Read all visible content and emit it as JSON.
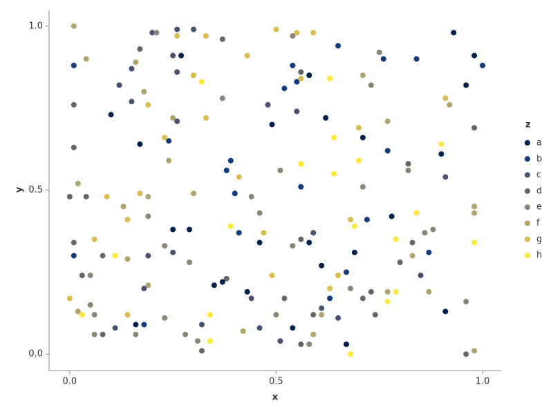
{
  "chart_data": {
    "type": "scatter",
    "x_label": "x",
    "y_label": "y",
    "legend_title": "z",
    "xlim": [
      -0.05,
      1.045
    ],
    "ylim": [
      -0.05,
      1.048
    ],
    "xticks": [
      {
        "value": 0,
        "label": "0.0"
      },
      {
        "value": 0.5,
        "label": "0.5"
      },
      {
        "value": 1,
        "label": "1.0"
      }
    ],
    "yticks": [
      {
        "value": 0,
        "label": "0.0"
      },
      {
        "value": 0.5,
        "label": "0.5"
      },
      {
        "value": 1,
        "label": "1.0"
      }
    ],
    "legend": "right",
    "series": [
      {
        "name": "a",
        "color": "#00204c",
        "x": [
          0.93,
          0.27,
          0.98,
          0.58,
          0.1,
          0.17,
          0.49,
          0.62,
          0.71,
          0.9,
          0.25,
          0.29,
          0.46,
          0.58,
          0.69,
          0.61,
          0.35,
          0.43,
          0.54,
          0.16,
          0.67,
          0.91,
          0.96,
          0.78,
          0.37
        ],
        "y": [
          0.98,
          0.91,
          0.91,
          0.85,
          0.73,
          0.64,
          0.7,
          0.72,
          0.66,
          0.61,
          0.38,
          0.38,
          0.34,
          0.34,
          0.31,
          0.27,
          0.21,
          0.19,
          0.08,
          0.09,
          0.03,
          0.13,
          0.82,
          0.42,
          0.22
        ]
      },
      {
        "name": "b",
        "color": "#133a7a",
        "x": [
          0.01,
          0.65,
          0.76,
          0.84,
          1.0,
          0.52,
          0.55,
          0.54,
          0.24,
          0.39,
          0.38,
          0.4,
          0.56,
          0.77,
          0.41,
          0.72,
          0.87,
          0.01,
          0.18,
          0.63,
          0.67
        ],
        "y": [
          0.88,
          0.94,
          0.9,
          0.9,
          0.88,
          0.81,
          0.83,
          0.88,
          0.65,
          0.59,
          0.56,
          0.49,
          0.51,
          0.62,
          0.37,
          0.41,
          0.31,
          0.3,
          0.09,
          0.17,
          0.25
        ]
      },
      {
        "name": "c",
        "color": "#495170",
        "x": [
          0.2,
          0.26,
          0.3,
          0.25,
          0.26,
          0.15,
          0.12,
          0.15,
          0.26,
          0.48,
          0.55,
          0.91,
          0.59,
          0.19,
          0.25,
          0.18,
          0.11,
          0.32,
          0.46,
          0.44,
          0.85,
          0.65,
          0.61,
          0.51
        ],
        "y": [
          0.98,
          0.99,
          0.99,
          0.91,
          0.86,
          0.87,
          0.82,
          0.77,
          0.71,
          0.76,
          0.74,
          0.54,
          0.37,
          0.3,
          0.31,
          0.2,
          0.08,
          0.09,
          0.08,
          0.17,
          0.24,
          0.11,
          0.14,
          0.04
        ]
      },
      {
        "name": "d",
        "color": "#666668",
        "x": [
          0.01,
          0.01,
          0.0,
          0.04,
          0.01,
          0.37,
          0.17,
          0.56,
          0.82,
          0.98,
          0.83,
          0.8,
          0.73,
          0.71,
          0.74,
          0.52,
          0.38,
          0.08,
          0.32,
          0.96,
          0.56,
          0.03,
          0.08,
          0.59,
          0.56
        ],
        "y": [
          0.76,
          0.63,
          0.48,
          0.48,
          0.34,
          0.96,
          0.93,
          0.86,
          0.58,
          0.69,
          0.34,
          0.28,
          0.19,
          0.17,
          0.12,
          0.17,
          0.23,
          0.06,
          0.01,
          0.0,
          0.03,
          0.24,
          0.3,
          0.12,
          0.35
        ]
      },
      {
        "name": "e",
        "color": "#8a8575",
        "x": [
          0.21,
          0.54,
          0.75,
          0.73,
          0.37,
          0.51,
          0.71,
          0.82,
          0.44,
          0.46,
          0.19,
          0.86,
          0.88,
          0.54,
          0.23,
          0.29,
          0.05,
          0.05,
          0.06,
          0.06,
          0.16,
          0.23,
          0.5,
          0.58,
          0.31,
          0.28,
          0.68,
          0.96
        ],
        "y": [
          0.98,
          0.97,
          0.92,
          0.82,
          0.78,
          0.56,
          0.51,
          0.56,
          0.48,
          0.43,
          0.42,
          0.37,
          0.38,
          0.33,
          0.33,
          0.28,
          0.24,
          0.15,
          0.12,
          0.06,
          0.06,
          0.11,
          0.12,
          0.03,
          0.04,
          0.06,
          0.2,
          0.16
        ]
      },
      {
        "name": "f",
        "color": "#b0a36e",
        "x": [
          0.01,
          0.04,
          0.16,
          0.3,
          0.18,
          0.25,
          0.24,
          0.02,
          0.13,
          0.19,
          0.3,
          0.71,
          0.77,
          0.92,
          0.98,
          0.98,
          0.14,
          0.19,
          0.02,
          0.77,
          0.83,
          0.87,
          0.61,
          0.59,
          0.42,
          0.98
        ],
        "y": [
          1.0,
          0.9,
          0.89,
          0.85,
          0.8,
          0.72,
          0.59,
          0.52,
          0.45,
          0.48,
          0.49,
          0.85,
          0.71,
          0.76,
          0.45,
          0.43,
          0.29,
          0.21,
          0.13,
          0.19,
          0.3,
          0.19,
          0.12,
          0.06,
          0.07,
          0.01
        ]
      },
      {
        "name": "g",
        "color": "#d9bd50",
        "x": [
          0.33,
          0.26,
          0.5,
          0.55,
          0.59,
          0.43,
          0.3,
          0.19,
          0.23,
          0.33,
          0.56,
          0.7,
          0.91,
          0.41,
          0.17,
          0.09,
          0.14,
          0.06,
          0.47,
          0.68,
          0.49,
          0.65,
          0.63,
          0.0,
          0.14
        ],
        "y": [
          0.97,
          0.97,
          0.99,
          0.98,
          0.98,
          0.91,
          0.85,
          0.76,
          0.66,
          0.72,
          0.84,
          0.69,
          0.78,
          0.54,
          0.49,
          0.48,
          0.41,
          0.35,
          0.37,
          0.41,
          0.24,
          0.24,
          0.2,
          0.17,
          0.12
        ]
      },
      {
        "name": "h",
        "color": "#fde839",
        "x": [
          0.32,
          0.63,
          0.64,
          0.56,
          0.64,
          0.7,
          0.9,
          0.39,
          0.69,
          0.84,
          0.79,
          0.98,
          0.11,
          0.34,
          0.03,
          0.34,
          0.68,
          0.79,
          0.77
        ],
        "y": [
          0.83,
          0.84,
          0.66,
          0.58,
          0.55,
          0.59,
          0.64,
          0.39,
          0.39,
          0.43,
          0.35,
          0.34,
          0.3,
          0.12,
          0.12,
          0.04,
          0.0,
          0.19,
          0.16
        ]
      }
    ]
  }
}
